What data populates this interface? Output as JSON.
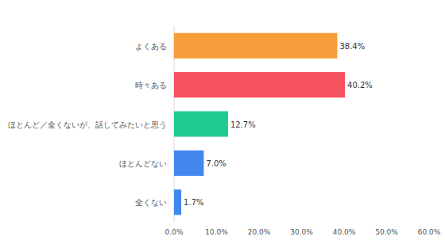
{
  "chart_data": {
    "type": "bar",
    "orientation": "horizontal",
    "categories": [
      "よくある",
      "時々ある",
      "ほとんど／全くないが、話してみたいと思う",
      "ほとんどない",
      "全くない"
    ],
    "values": [
      38.4,
      40.2,
      12.7,
      7.0,
      1.7
    ],
    "value_labels": [
      "38.4%",
      "40.2%",
      "12.7%",
      "7.0%",
      "1.7%"
    ],
    "colors": [
      "#f89d3b",
      "#f6515d",
      "#1ecb8f",
      "#4287f0",
      "#4287f0"
    ],
    "xlim": [
      0,
      60
    ],
    "xticks": [
      {
        "value": 0,
        "label": "0.0%"
      },
      {
        "value": 10,
        "label": "10.0%"
      },
      {
        "value": 20,
        "label": "20.0%"
      },
      {
        "value": 30,
        "label": "30.0%"
      },
      {
        "value": 40,
        "label": "40.0%"
      },
      {
        "value": 50,
        "label": "50.0%"
      },
      {
        "value": 60,
        "label": "60.0%"
      }
    ],
    "grid": false,
    "data_labels": true
  }
}
